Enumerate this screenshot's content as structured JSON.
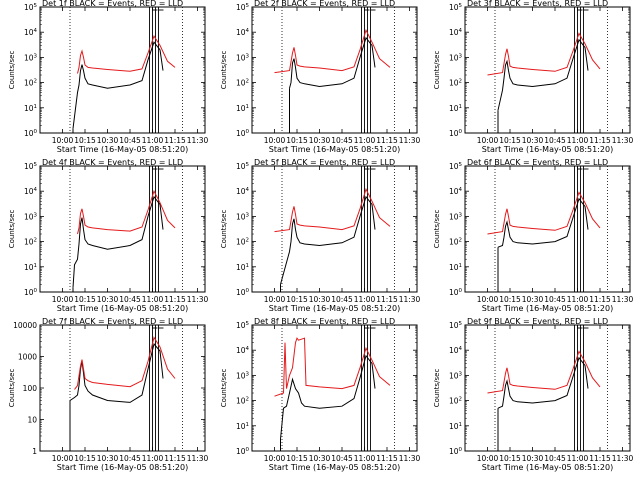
{
  "chart_data": [
    {
      "type": "line",
      "title": "Det 1f BLACK = Events, RED = LLD",
      "xlabel": "Start Time (16-May-05 08:51:20)",
      "ylabel": "Counts/sec",
      "log_y": true,
      "x_ticks": [
        "10:00",
        "10:15",
        "10:30",
        "10:45",
        "11:00",
        "11:15",
        "11:30"
      ],
      "y_tick_labels": [
        "10^0",
        "10^1",
        "10^2",
        "10^3",
        "10^4",
        "10^5"
      ],
      "ylim": [
        1,
        100000
      ],
      "series": [
        {
          "color": "#000000",
          "x": [
            "10:07",
            "10:10",
            "10:11",
            "10:12",
            "10:13",
            "10:14",
            "10:15",
            "10:17",
            "10:20",
            "10:30",
            "10:45",
            "10:53",
            "10:57",
            "11:01",
            "11:05",
            "11:07"
          ],
          "y": [
            1.5,
            40,
            80,
            300,
            520,
            300,
            150,
            90,
            80,
            60,
            80,
            120,
            800,
            4000,
            2000,
            300
          ]
        },
        {
          "color": "#e41a1c",
          "x": [
            "10:10",
            "10:11",
            "10:12",
            "10:13",
            "10:14",
            "10:15",
            "10:17",
            "10:20",
            "10:30",
            "10:45",
            "10:53",
            "10:57",
            "11:01",
            "11:05",
            "11:10",
            "11:15"
          ],
          "y": [
            230,
            400,
            1200,
            1800,
            1000,
            500,
            400,
            380,
            330,
            280,
            350,
            1500,
            7000,
            3000,
            700,
            400
          ]
        }
      ],
      "vertical_markers": [
        "10:05",
        "10:58",
        "11:02",
        "11:20"
      ]
    },
    {
      "type": "line",
      "title": "Det 2f BLACK = Events, RED = LLD",
      "xlabel": "Start Time (16-May-05 08:51:20)",
      "ylabel": "Counts/sec",
      "log_y": true,
      "x_ticks": [
        "10:00",
        "10:15",
        "10:30",
        "10:45",
        "11:00",
        "11:15",
        "11:30"
      ],
      "y_tick_labels": [
        "10^0",
        "10^1",
        "10^2",
        "10^3",
        "10^4",
        "10^5"
      ],
      "ylim": [
        1,
        100000
      ],
      "series": [
        {
          "color": "#000000",
          "x": [
            "10:10",
            "10:11",
            "10:12",
            "10:13",
            "10:14",
            "10:15",
            "10:17",
            "10:20",
            "10:30",
            "10:45",
            "10:53",
            "10:57",
            "11:01",
            "11:05",
            "11:07"
          ],
          "y": [
            60,
            100,
            600,
            900,
            400,
            150,
            100,
            90,
            70,
            90,
            150,
            1000,
            6000,
            3000,
            400
          ]
        },
        {
          "color": "#e41a1c",
          "x": [
            "10:00",
            "10:10",
            "10:12",
            "10:13",
            "10:14",
            "10:15",
            "10:17",
            "10:20",
            "10:30",
            "10:45",
            "10:53",
            "10:57",
            "11:01",
            "11:05",
            "11:10",
            "11:17"
          ],
          "y": [
            250,
            300,
            1500,
            2500,
            1200,
            500,
            450,
            420,
            380,
            300,
            420,
            2000,
            12000,
            4000,
            900,
            400
          ]
        }
      ],
      "vertical_markers": [
        "10:05",
        "10:58",
        "11:02",
        "11:20"
      ]
    },
    {
      "type": "line",
      "title": "Det 3f BLACK = Events, RED = LLD",
      "xlabel": "Start Time (16-May-05 08:51:20)",
      "ylabel": "Counts/sec",
      "log_y": true,
      "x_ticks": [
        "10:00",
        "10:15",
        "10:30",
        "10:45",
        "11:00",
        "11:15",
        "11:30"
      ],
      "y_tick_labels": [
        "10^0",
        "10^1",
        "10^2",
        "10^3",
        "10^4",
        "10^5"
      ],
      "ylim": [
        1,
        100000
      ],
      "series": [
        {
          "color": "#000000",
          "x": [
            "10:07",
            "10:10",
            "10:11",
            "10:12",
            "10:13",
            "10:14",
            "10:15",
            "10:17",
            "10:20",
            "10:30",
            "10:45",
            "10:53",
            "10:57",
            "11:01",
            "11:05",
            "11:07"
          ],
          "y": [
            8,
            50,
            150,
            500,
            700,
            300,
            150,
            90,
            80,
            70,
            90,
            150,
            900,
            5000,
            2500,
            300
          ]
        },
        {
          "color": "#e41a1c",
          "x": [
            "10:00",
            "10:10",
            "10:12",
            "10:13",
            "10:14",
            "10:15",
            "10:17",
            "10:20",
            "10:30",
            "10:45",
            "10:53",
            "10:57",
            "11:01",
            "11:05",
            "11:10",
            "11:15"
          ],
          "y": [
            200,
            250,
            1300,
            2200,
            1100,
            450,
            400,
            380,
            330,
            280,
            400,
            1800,
            9000,
            3500,
            800,
            350
          ]
        }
      ],
      "vertical_markers": [
        "10:05",
        "10:58",
        "11:02",
        "11:20"
      ]
    },
    {
      "type": "line",
      "title": "Det 4f BLACK = Events, RED = LLD",
      "xlabel": "Start Time (16-May-05 08:51:20)",
      "ylabel": "Counts/sec",
      "log_y": true,
      "x_ticks": [
        "10:00",
        "10:15",
        "10:30",
        "10:45",
        "11:00",
        "11:15",
        "11:30"
      ],
      "y_tick_labels": [
        "10^0",
        "10^1",
        "10^2",
        "10^3",
        "10^4",
        "10^5"
      ],
      "ylim": [
        1,
        100000
      ],
      "series": [
        {
          "color": "#000000",
          "x": [
            "10:07",
            "10:08",
            "10:10",
            "10:11",
            "10:12",
            "10:13",
            "10:14",
            "10:15",
            "10:17",
            "10:20",
            "10:30",
            "10:45",
            "10:53",
            "10:57",
            "11:01",
            "11:05",
            "11:07"
          ],
          "y": [
            1.5,
            12,
            20,
            80,
            500,
            900,
            300,
            120,
            80,
            70,
            50,
            70,
            120,
            1000,
            6000,
            3000,
            300
          ]
        },
        {
          "color": "#e41a1c",
          "x": [
            "10:10",
            "10:11",
            "10:12",
            "10:13",
            "10:14",
            "10:15",
            "10:17",
            "10:20",
            "10:30",
            "10:45",
            "10:53",
            "10:57",
            "11:01",
            "11:05",
            "11:10",
            "11:15"
          ],
          "y": [
            200,
            350,
            1300,
            2000,
            1000,
            450,
            380,
            350,
            300,
            260,
            380,
            1800,
            10000,
            3500,
            700,
            350
          ]
        }
      ],
      "vertical_markers": [
        "10:05",
        "10:58",
        "11:02",
        "11:20"
      ]
    },
    {
      "type": "line",
      "title": "Det 5f BLACK = Events, RED = LLD",
      "xlabel": "Start Time (16-May-05 08:51:20)",
      "ylabel": "Counts/sec",
      "log_y": true,
      "x_ticks": [
        "10:00",
        "10:15",
        "10:30",
        "10:45",
        "11:00",
        "11:15",
        "11:30"
      ],
      "y_tick_labels": [
        "10^0",
        "10^1",
        "10^2",
        "10^3",
        "10^4",
        "10^5"
      ],
      "ylim": [
        1,
        100000
      ],
      "series": [
        {
          "color": "#000000",
          "x": [
            "10:04",
            "10:10",
            "10:11",
            "10:12",
            "10:13",
            "10:14",
            "10:15",
            "10:17",
            "10:20",
            "10:30",
            "10:45",
            "10:53",
            "10:57",
            "11:01",
            "11:05",
            "11:07"
          ],
          "y": [
            2,
            40,
            100,
            500,
            800,
            300,
            150,
            90,
            80,
            70,
            90,
            150,
            1000,
            6000,
            3000,
            300
          ]
        },
        {
          "color": "#e41a1c",
          "x": [
            "10:00",
            "10:10",
            "10:12",
            "10:13",
            "10:14",
            "10:15",
            "10:17",
            "10:20",
            "10:30",
            "10:45",
            "10:53",
            "10:57",
            "11:01",
            "11:05",
            "11:10",
            "11:17"
          ],
          "y": [
            250,
            300,
            1500,
            2500,
            1200,
            500,
            450,
            420,
            380,
            300,
            420,
            2000,
            12000,
            4000,
            900,
            400
          ]
        }
      ],
      "vertical_markers": [
        "10:05",
        "10:58",
        "11:02",
        "11:20"
      ]
    },
    {
      "type": "line",
      "title": "Det 6f BLACK = Events, RED = LLD",
      "xlabel": "Start Time (16-May-05 08:51:20)",
      "ylabel": "Counts/sec",
      "log_y": true,
      "x_ticks": [
        "10:00",
        "10:15",
        "10:30",
        "10:45",
        "11:00",
        "11:15",
        "11:30"
      ],
      "y_tick_labels": [
        "10^0",
        "10^1",
        "10^2",
        "10^3",
        "10^4",
        "10^5"
      ],
      "ylim": [
        1,
        100000
      ],
      "series": [
        {
          "color": "#000000",
          "x": [
            "10:07",
            "10:10",
            "10:11",
            "10:12",
            "10:13",
            "10:14",
            "10:15",
            "10:17",
            "10:20",
            "10:30",
            "10:45",
            "10:53",
            "10:57",
            "11:01",
            "11:05",
            "11:07"
          ],
          "y": [
            60,
            70,
            150,
            400,
            600,
            300,
            150,
            100,
            90,
            80,
            100,
            160,
            900,
            5000,
            2500,
            300
          ]
        },
        {
          "color": "#e41a1c",
          "x": [
            "10:00",
            "10:10",
            "10:12",
            "10:13",
            "10:14",
            "10:15",
            "10:17",
            "10:20",
            "10:30",
            "10:45",
            "10:53",
            "10:57",
            "11:01",
            "11:05",
            "11:10",
            "11:15"
          ],
          "y": [
            200,
            250,
            1200,
            2000,
            1000,
            450,
            400,
            380,
            330,
            280,
            400,
            1800,
            9000,
            3500,
            800,
            350
          ]
        }
      ],
      "vertical_markers": [
        "10:05",
        "10:58",
        "11:02",
        "11:20"
      ]
    },
    {
      "type": "line",
      "title": "Det 7f BLACK = Events, RED = LLD",
      "xlabel": "Start Time (16-May-05 08:51:20)",
      "ylabel": "Counts/sec",
      "log_y": true,
      "x_ticks": [
        "10:00",
        "10:15",
        "10:30",
        "10:45",
        "11:00",
        "11:15",
        "11:30"
      ],
      "y_tick_labels": [
        "1",
        "10",
        "100",
        "1000",
        "10000"
      ],
      "ylim": [
        1,
        10000
      ],
      "series": [
        {
          "color": "#000000",
          "x": [
            "10:05",
            "10:08",
            "10:10",
            "10:11",
            "10:12",
            "10:13",
            "10:14",
            "10:15",
            "10:17",
            "10:20",
            "10:30",
            "10:45",
            "10:53",
            "10:57",
            "11:01",
            "11:05",
            "11:07"
          ],
          "y": [
            40,
            50,
            60,
            120,
            400,
            700,
            300,
            120,
            80,
            60,
            40,
            35,
            60,
            400,
            2500,
            1500,
            200
          ]
        },
        {
          "color": "#e41a1c",
          "x": [
            "10:08",
            "10:10",
            "10:12",
            "10:13",
            "10:14",
            "10:15",
            "10:17",
            "10:20",
            "10:30",
            "10:45",
            "10:53",
            "10:57",
            "11:01",
            "11:05",
            "11:10",
            "11:15"
          ],
          "y": [
            90,
            120,
            500,
            800,
            400,
            200,
            170,
            150,
            130,
            110,
            170,
            700,
            4000,
            2000,
            400,
            200
          ]
        }
      ],
      "vertical_markers": [
        "10:05",
        "10:58",
        "11:02",
        "11:20"
      ]
    },
    {
      "type": "line",
      "title": "Det 8f BLACK = Events, RED = LLD",
      "xlabel": "Start Time (16-May-05 08:51:20)",
      "ylabel": "Counts/sec",
      "log_y": true,
      "x_ticks": [
        "10:00",
        "10:15",
        "10:30",
        "10:45",
        "11:00",
        "11:15",
        "11:30"
      ],
      "y_tick_labels": [
        "10^0",
        "10^1",
        "10^2",
        "10^3",
        "10^4",
        "10^5"
      ],
      "ylim": [
        1,
        100000
      ],
      "series": [
        {
          "color": "#000000",
          "x": [
            "10:04",
            "10:06",
            "10:08",
            "10:10",
            "10:12",
            "10:14",
            "10:16",
            "10:18",
            "10:20",
            "10:30",
            "10:45",
            "10:53",
            "10:57",
            "11:01",
            "11:05",
            "11:07"
          ],
          "y": [
            3,
            50,
            60,
            200,
            700,
            300,
            200,
            80,
            60,
            50,
            60,
            120,
            800,
            6000,
            3000,
            300
          ]
        },
        {
          "color": "#e41a1c",
          "x": [
            "10:00",
            "10:06",
            "10:07",
            "10:08",
            "10:10",
            "10:12",
            "10:14",
            "10:15",
            "10:16",
            "10:20",
            "10:21",
            "10:30",
            "10:45",
            "10:53",
            "10:57",
            "11:01",
            "11:05",
            "11:10",
            "11:17"
          ],
          "y": [
            150,
            200,
            20000,
            300,
            1000,
            2000,
            20000,
            30000,
            25000,
            30000,
            400,
            350,
            300,
            400,
            2000,
            12000,
            4000,
            900,
            400
          ]
        }
      ],
      "vertical_markers": [
        "10:05",
        "10:58",
        "11:02",
        "11:20"
      ]
    },
    {
      "type": "line",
      "title": "Det 9f BLACK = Events, RED = LLD",
      "xlabel": "Start Time (16-May-05 08:51:20)",
      "ylabel": "Counts/sec",
      "log_y": true,
      "x_ticks": [
        "10:00",
        "10:15",
        "10:30",
        "10:45",
        "11:00",
        "11:15",
        "11:30"
      ],
      "y_tick_labels": [
        "10^0",
        "10^1",
        "10^2",
        "10^3",
        "10^4",
        "10^5"
      ],
      "ylim": [
        1,
        100000
      ],
      "series": [
        {
          "color": "#000000",
          "x": [
            "10:07",
            "10:10",
            "10:11",
            "10:12",
            "10:13",
            "10:14",
            "10:15",
            "10:17",
            "10:20",
            "10:30",
            "10:45",
            "10:53",
            "10:57",
            "11:01",
            "11:05",
            "11:07"
          ],
          "y": [
            50,
            60,
            150,
            400,
            600,
            300,
            150,
            100,
            90,
            80,
            100,
            160,
            900,
            5000,
            2500,
            300
          ]
        },
        {
          "color": "#e41a1c",
          "x": [
            "10:00",
            "10:10",
            "10:12",
            "10:13",
            "10:14",
            "10:15",
            "10:17",
            "10:20",
            "10:30",
            "10:45",
            "10:53",
            "10:57",
            "11:01",
            "11:05",
            "11:10",
            "11:15"
          ],
          "y": [
            200,
            250,
            1200,
            2000,
            1000,
            450,
            400,
            380,
            330,
            280,
            400,
            1800,
            9000,
            3500,
            800,
            350
          ]
        }
      ],
      "vertical_markers": [
        "10:05",
        "10:58",
        "11:02",
        "11:20"
      ]
    }
  ]
}
